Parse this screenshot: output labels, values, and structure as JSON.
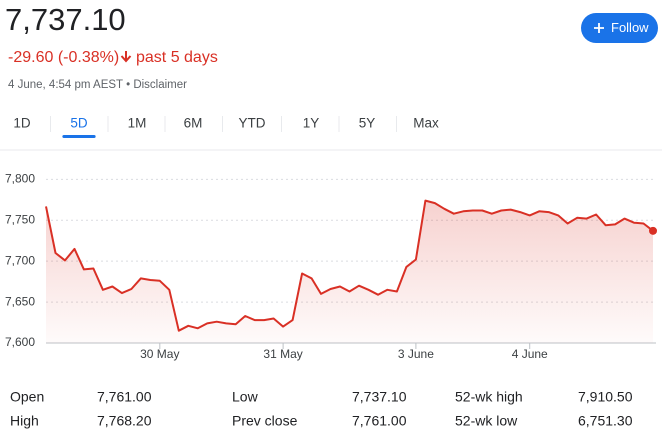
{
  "header": {
    "price": "7,737.10",
    "change": "-29.60 (-0.38%)",
    "period": "past 5 days",
    "timestamp": "4 June, 4:54 pm AEST",
    "separator": "•",
    "disclaimer": "Disclaimer",
    "follow": "Follow"
  },
  "tabs": [
    "1D",
    "5D",
    "1M",
    "6M",
    "YTD",
    "1Y",
    "5Y",
    "Max"
  ],
  "active_tab": "5D",
  "chart_data": {
    "type": "line",
    "color": "#d93025",
    "categories": [
      null,
      null,
      null,
      null,
      null,
      null,
      null,
      null,
      null,
      null,
      null,
      null,
      "30 May",
      null,
      null,
      null,
      null,
      null,
      null,
      null,
      null,
      null,
      null,
      null,
      null,
      "31 May",
      null,
      null,
      null,
      null,
      null,
      null,
      null,
      null,
      null,
      null,
      null,
      null,
      null,
      "3 June",
      null,
      null,
      null,
      null,
      null,
      null,
      null,
      null,
      null,
      null,
      null,
      "4 June",
      null,
      null,
      null,
      null,
      null,
      null,
      null,
      null,
      null,
      null,
      null,
      null,
      null
    ],
    "values": [
      7767,
      7710,
      7701,
      7715,
      7690,
      7691,
      7665,
      7669,
      7661,
      7666,
      7679,
      7677,
      7676,
      7665,
      7615,
      7621,
      7618,
      7624,
      7626,
      7624,
      7623,
      7633,
      7628,
      7628,
      7630,
      7620,
      7628,
      7685,
      7679,
      7660,
      7666,
      7669,
      7663,
      7670,
      7665,
      7659,
      7665,
      7663,
      7693,
      7702,
      7774,
      7771,
      7764,
      7758,
      7761,
      7762,
      7762,
      7758,
      7762,
      7763,
      7760,
      7756,
      7761,
      7760,
      7756,
      7746,
      7753,
      7752,
      7757,
      7744,
      7745,
      7752,
      7747,
      7746,
      7737.1
    ],
    "ylim": [
      7600,
      7820
    ],
    "yticks": [
      {
        "value": 7600,
        "label": "7,600"
      },
      {
        "value": 7650,
        "label": "7,650"
      },
      {
        "value": 7700,
        "label": "7,700"
      },
      {
        "value": 7750,
        "label": "7,750"
      },
      {
        "value": 7800,
        "label": "7,800"
      }
    ],
    "grid": true
  },
  "stats": {
    "rows": [
      [
        "Open",
        "7,761.00",
        "Low",
        "7,737.10",
        "52-wk high",
        "7,910.50"
      ],
      [
        "High",
        "7,768.20",
        "Prev close",
        "7,761.00",
        "52-wk low",
        "6,751.30"
      ]
    ]
  }
}
